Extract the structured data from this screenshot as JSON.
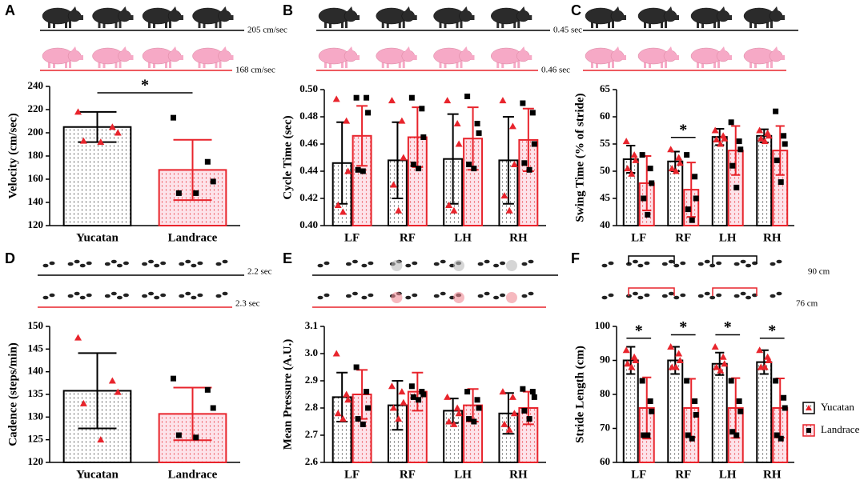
{
  "chart_data": [
    {
      "type": "bar",
      "label": "A",
      "ylabel": "Velocity (cm/sec)",
      "categories": [
        "Yucatan",
        "Landrace"
      ],
      "values": [
        205,
        168
      ],
      "errors": [
        13,
        26
      ],
      "colors": [
        "#000000",
        "#e8242c"
      ],
      "point_colors": [
        "#e8242c",
        "#000000"
      ],
      "points": [
        [
          218,
          205,
          200,
          193,
          192
        ],
        [
          213,
          175,
          158,
          148,
          148
        ]
      ],
      "ylim": [
        120,
        240
      ],
      "yticks": [
        120,
        140,
        160,
        180,
        200,
        220,
        240
      ],
      "significance": "*",
      "headers": [
        {
          "text": "205 cm/sec",
          "color": "#000000"
        },
        {
          "text": "168 cm/sec",
          "color": "#e8242c"
        }
      ]
    },
    {
      "type": "bar",
      "label": "B",
      "ylabel": "Cycle Time (sec)",
      "categories": [
        "LF",
        "RF",
        "LH",
        "RH"
      ],
      "point_colors": [
        "#e8242c",
        "#000000"
      ],
      "series": [
        {
          "color": "#000000",
          "values": [
            0.446,
            0.448,
            0.449,
            0.448
          ],
          "errors": [
            0.03,
            0.028,
            0.033,
            0.032
          ],
          "points": [
            [
              0.493,
              0.477,
              0.44,
              0.415,
              0.41
            ],
            [
              0.492,
              0.477,
              0.45,
              0.43,
              0.411
            ],
            [
              0.492,
              0.475,
              0.46,
              0.415,
              0.411
            ],
            [
              0.492,
              0.473,
              0.445,
              0.422,
              0.411
            ]
          ]
        },
        {
          "color": "#e8242c",
          "values": [
            0.466,
            0.465,
            0.464,
            0.463
          ],
          "errors": [
            0.022,
            0.022,
            0.023,
            0.023
          ],
          "points": [
            [
              0.494,
              0.494,
              0.483,
              0.441,
              0.44
            ],
            [
              0.494,
              0.486,
              0.465,
              0.445,
              0.442
            ],
            [
              0.495,
              0.475,
              0.468,
              0.445,
              0.442
            ],
            [
              0.49,
              0.483,
              0.46,
              0.446,
              0.441
            ]
          ]
        }
      ],
      "ylim": [
        0.4,
        0.5
      ],
      "yticks": [
        {
          "value": 0.4,
          "label": "0.40"
        },
        0.42,
        0.44,
        0.46,
        0.48,
        {
          "value": 0.5,
          "label": "0.50"
        }
      ],
      "headers": [
        {
          "text": "0.45 sec",
          "color": "#000000"
        },
        {
          "text": "0.46 sec",
          "color": "#e8242c"
        }
      ]
    },
    {
      "type": "bar",
      "label": "C",
      "ylabel": "Swing Time (% of stride)",
      "categories": [
        "LF",
        "RF",
        "LH",
        "RH"
      ],
      "point_colors": [
        "#e8242c",
        "#000000"
      ],
      "series": [
        {
          "color": "#000000",
          "values": [
            52.2,
            51.8,
            56.3,
            56.5
          ],
          "errors": [
            2.5,
            1.8,
            1.5,
            1.2
          ],
          "points": [
            [
              55.5,
              53,
              52,
              50.5,
              49.5
            ],
            [
              54,
              52.5,
              51.5,
              50.5,
              50
            ],
            [
              57.5,
              56.5,
              56,
              55.8,
              55
            ],
            [
              57.5,
              57,
              56.5,
              56,
              55.5
            ]
          ]
        },
        {
          "color": "#e8242c",
          "values": [
            47.8,
            46.6,
            53.8,
            53.8
          ],
          "errors": [
            5,
            5,
            4.5,
            4.5
          ],
          "points": [
            [
              53,
              50.5,
              47.8,
              45,
              42
            ],
            [
              53,
              49,
              45,
              43,
              41
            ],
            [
              59,
              55.5,
              54,
              51,
              47
            ],
            [
              61,
              56.5,
              55,
              52,
              48
            ]
          ]
        }
      ],
      "ylim": [
        40,
        65
      ],
      "yticks": [
        40,
        45,
        50,
        55,
        60,
        65
      ],
      "significance": {
        "RF": "*"
      }
    },
    {
      "type": "bar",
      "label": "D",
      "ylabel": "Cadence (steps/min)",
      "categories": [
        "Yucatan",
        "Landrace"
      ],
      "values": [
        135.8,
        130.7
      ],
      "errors": [
        8.3,
        5.8
      ],
      "colors": [
        "#000000",
        "#e8242c"
      ],
      "point_colors": [
        "#e8242c",
        "#000000"
      ],
      "points": [
        [
          147.5,
          138,
          135.5,
          133,
          125
        ],
        [
          138.5,
          136,
          132,
          126,
          125.5
        ]
      ],
      "ylim": [
        120,
        150
      ],
      "yticks": [
        120,
        125,
        130,
        135,
        140,
        145,
        150
      ],
      "headers": [
        {
          "text": "2.2 sec",
          "color": "#000000"
        },
        {
          "text": "2.3 sec",
          "color": "#e8242c"
        }
      ]
    },
    {
      "type": "bar",
      "label": "E",
      "ylabel": "Mean Pressure (A.U.)",
      "categories": [
        "LF",
        "RF",
        "LH",
        "RH"
      ],
      "point_colors": [
        "#e8242c",
        "#000000"
      ],
      "series": [
        {
          "color": "#000000",
          "values": [
            2.84,
            2.81,
            2.79,
            2.78
          ],
          "errors": [
            0.09,
            0.09,
            0.045,
            0.075
          ],
          "points": [
            [
              3.0,
              2.85,
              2.83,
              2.78,
              2.76
            ],
            [
              2.88,
              2.86,
              2.82,
              2.8,
              2.76
            ],
            [
              2.84,
              2.8,
              2.78,
              2.75,
              2.74
            ],
            [
              2.86,
              2.84,
              2.78,
              2.74,
              2.72
            ]
          ]
        },
        {
          "color": "#e8242c",
          "values": [
            2.85,
            2.86,
            2.81,
            2.8
          ],
          "errors": [
            0.09,
            0.07,
            0.06,
            0.06
          ],
          "points": [
            [
              2.95,
              2.86,
              2.8,
              2.76,
              2.74
            ],
            [
              2.88,
              2.86,
              2.85,
              2.84,
              2.83
            ],
            [
              2.86,
              2.83,
              2.8,
              2.76,
              2.75
            ],
            [
              2.87,
              2.86,
              2.84,
              2.79,
              2.76
            ]
          ]
        }
      ],
      "ylim": [
        2.6,
        3.1
      ],
      "yticks": [
        2.6,
        2.7,
        2.8,
        2.9,
        {
          "value": 3.0,
          "label": "3.0"
        },
        3.1
      ]
    },
    {
      "type": "bar",
      "label": "F",
      "ylabel": "Stride Length (cm)",
      "categories": [
        "LF",
        "RF",
        "LH",
        "RH"
      ],
      "point_colors": [
        "#e8242c",
        "#000000"
      ],
      "series": [
        {
          "name": "Yucatan",
          "color": "#000000",
          "values": [
            90,
            90,
            89,
            89.5
          ],
          "errors": [
            4,
            4,
            3.3,
            3.5
          ],
          "points": [
            [
              93,
              91,
              90,
              89,
              88
            ],
            [
              94,
              92,
              90,
              88,
              88
            ],
            [
              94,
              91,
              89,
              88,
              87
            ],
            [
              93,
              91,
              90,
              88,
              88
            ]
          ]
        },
        {
          "name": "Landrace",
          "color": "#e8242c",
          "values": [
            76,
            76,
            76,
            76
          ],
          "errors": [
            9,
            8.6,
            8.8,
            8.7
          ],
          "points": [
            [
              84,
              78,
              75,
              68,
              68
            ],
            [
              84,
              78,
              74,
              68,
              67
            ],
            [
              84,
              78,
              75,
              69,
              68
            ],
            [
              84,
              79,
              76,
              68,
              67
            ]
          ]
        }
      ],
      "ylim": [
        60,
        100
      ],
      "yticks": [
        60,
        70,
        80,
        90,
        100
      ],
      "significance": {
        "LF": "*",
        "RF": "*",
        "LH": "*",
        "RH": "*"
      },
      "legend": true,
      "headers": [
        {
          "text": "90 cm",
          "color": "#000000"
        },
        {
          "text": "76 cm",
          "color": "#e8242c"
        }
      ]
    }
  ]
}
